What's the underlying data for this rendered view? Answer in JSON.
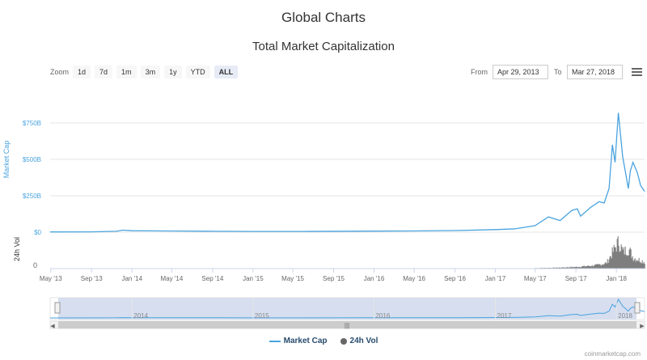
{
  "page": {
    "title": "Global Charts",
    "credit": "coinmarketcap.com"
  },
  "zoom": {
    "label": "Zoom",
    "buttons": [
      "1d",
      "7d",
      "1m",
      "3m",
      "1y",
      "YTD",
      "ALL"
    ],
    "active": "ALL"
  },
  "range": {
    "from_label": "From",
    "from_value": "Apr 29, 2013",
    "to_label": "To",
    "to_value": "Mar 27, 2018"
  },
  "legend": {
    "market_cap": "Market Cap",
    "vol": "24h Vol"
  },
  "navigator": {
    "years": [
      "2014",
      "2015",
      "2016",
      "2017",
      "2018"
    ]
  },
  "colors": {
    "market_cap": "#4aa3df",
    "volume": "#666666",
    "navigator_fill": "#ccd6eb"
  },
  "chart_data": {
    "type": "line",
    "title": "Total Market Capitalization",
    "x_ticks": [
      "May '13",
      "Sep '13",
      "Jan '14",
      "May '14",
      "Sep '14",
      "Jan '15",
      "May '15",
      "Sep '15",
      "Jan '16",
      "May '16",
      "Sep '16",
      "Jan '17",
      "May '17",
      "Sep '17",
      "Jan '18"
    ],
    "market_cap_axis": {
      "label": "Market Cap",
      "ticks": [
        "$0",
        "$250B",
        "$500B",
        "$750B"
      ],
      "ylim": [
        0,
        750
      ]
    },
    "volume_axis": {
      "label": "24h Vol",
      "ticks": [
        "0"
      ]
    },
    "series": [
      {
        "name": "Market Cap",
        "unit": "billion USD",
        "x": [
          "2013-04-29",
          "2013-09-01",
          "2013-11-15",
          "2013-12-04",
          "2014-01-01",
          "2014-03-01",
          "2014-06-01",
          "2014-09-01",
          "2015-01-01",
          "2015-06-01",
          "2016-01-01",
          "2016-06-01",
          "2016-09-01",
          "2017-01-01",
          "2017-03-01",
          "2017-05-01",
          "2017-06-10",
          "2017-07-15",
          "2017-08-20",
          "2017-09-05",
          "2017-09-15",
          "2017-10-15",
          "2017-11-10",
          "2017-11-25",
          "2017-12-10",
          "2017-12-20",
          "2017-12-28",
          "2018-01-07",
          "2018-01-12",
          "2018-01-20",
          "2018-02-06",
          "2018-02-12",
          "2018-02-20",
          "2018-03-05",
          "2018-03-15",
          "2018-03-27"
        ],
        "values": [
          1.5,
          2,
          6,
          14,
          10,
          9,
          8,
          6,
          5,
          5,
          7,
          9,
          11,
          18,
          23,
          45,
          105,
          80,
          150,
          160,
          110,
          170,
          210,
          200,
          300,
          600,
          480,
          820,
          700,
          520,
          300,
          420,
          480,
          410,
          320,
          280
        ]
      },
      {
        "name": "24h Vol",
        "unit": "billion USD",
        "x": [
          "2017-05-01",
          "2017-07-01",
          "2017-09-01",
          "2017-11-01",
          "2017-12-01",
          "2017-12-20",
          "2018-01-07",
          "2018-01-20",
          "2018-02-06",
          "2018-02-20",
          "2018-03-10",
          "2018-03-27"
        ],
        "values": [
          0.5,
          0.8,
          1.5,
          3,
          5,
          15,
          25,
          15,
          18,
          10,
          8,
          6
        ]
      }
    ]
  }
}
